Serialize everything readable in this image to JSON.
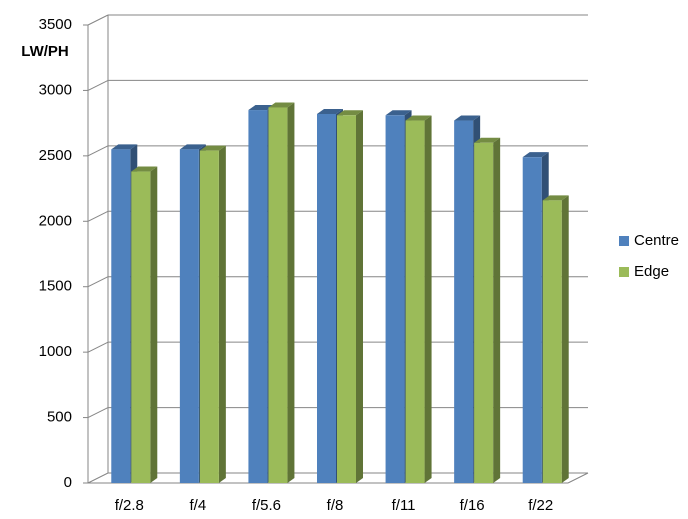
{
  "chart_data": {
    "type": "bar3d",
    "y_label": "LW/PH",
    "categories": [
      "f/2.8",
      "f/4",
      "f/5.6",
      "f/8",
      "f/11",
      "f/16",
      "f/22"
    ],
    "series": [
      {
        "name": "Centre",
        "color": "#4f81bd",
        "values": [
          2550,
          2550,
          2850,
          2820,
          2810,
          2770,
          2490
        ]
      },
      {
        "name": "Edge",
        "color": "#9bbb59",
        "values": [
          2380,
          2540,
          2870,
          2810,
          2770,
          2600,
          2160
        ]
      }
    ],
    "ylim": [
      0,
      3500
    ],
    "yticks": [
      0,
      500,
      1000,
      1500,
      2000,
      2500,
      3000,
      3500
    ],
    "grid": true,
    "legend": "right"
  }
}
